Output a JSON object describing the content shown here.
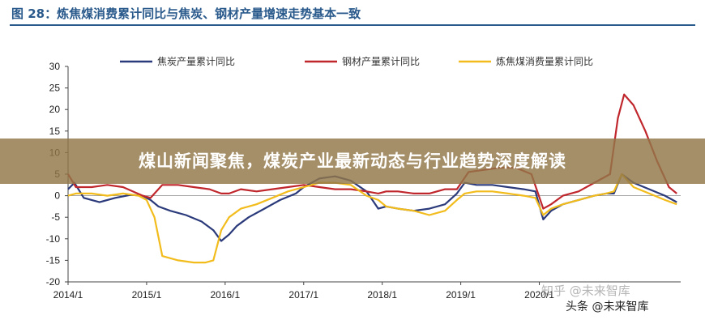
{
  "figure": {
    "title": "图 28：炼焦煤消费累计同比与焦炭、钢材产量增速走势基本一致"
  },
  "banner": {
    "text": "煤山新闻聚焦，煤炭产业最新动态与行业趋势深度解读",
    "color": "#917648"
  },
  "watermark": {
    "text": "知乎 @未来智库"
  },
  "source": {
    "text": "头条 @未来智库"
  },
  "chart_data": {
    "type": "line",
    "x_ticks": [
      "2014/1",
      "2015/1",
      "2016/1",
      "2017/1",
      "2018/1",
      "2019/1",
      "2020/1"
    ],
    "x_range": [
      2014.0,
      2021.8
    ],
    "ylim": [
      -20,
      30
    ],
    "y_ticks": [
      30,
      25,
      20,
      15,
      10,
      5,
      0,
      -5,
      -10,
      -15,
      -20
    ],
    "grid": false,
    "legend_position": "top",
    "series": [
      {
        "name": "焦炭产量累计同比",
        "color": "#2b3a7a",
        "x": [
          2014.0,
          2014.08,
          2014.2,
          2014.4,
          2014.6,
          2014.8,
          2014.95,
          2015.05,
          2015.15,
          2015.3,
          2015.5,
          2015.7,
          2015.85,
          2015.95,
          2016.05,
          2016.15,
          2016.3,
          2016.5,
          2016.7,
          2016.9,
          2017.0,
          2017.2,
          2017.4,
          2017.6,
          2017.8,
          2017.95,
          2018.05,
          2018.2,
          2018.4,
          2018.6,
          2018.8,
          2018.95,
          2019.05,
          2019.2,
          2019.4,
          2019.6,
          2019.8,
          2019.95,
          2020.05,
          2020.15,
          2020.3,
          2020.5,
          2020.7,
          2020.85,
          2020.95,
          2021.05,
          2021.2,
          2021.4,
          2021.6,
          2021.75
        ],
        "values": [
          1.5,
          3.0,
          -0.5,
          -1.5,
          -0.5,
          0.2,
          0.0,
          -1.0,
          -2.5,
          -3.5,
          -4.5,
          -6.0,
          -8.0,
          -10.5,
          -9.0,
          -7.0,
          -5.0,
          -3.0,
          -1.0,
          0.5,
          2.0,
          4.0,
          4.5,
          3.5,
          1.0,
          -3.0,
          -2.5,
          -3.0,
          -3.5,
          -3.0,
          -2.0,
          0.5,
          3.0,
          2.5,
          2.5,
          2.0,
          1.5,
          1.0,
          -5.5,
          -3.5,
          -2.0,
          -1.0,
          0.0,
          0.5,
          0.5,
          5.0,
          3.0,
          1.5,
          0.0,
          -1.5
        ]
      },
      {
        "name": "钢材产量累计同比",
        "color": "#c0272d",
        "x": [
          2014.0,
          2014.1,
          2014.3,
          2014.5,
          2014.7,
          2014.95,
          2015.05,
          2015.2,
          2015.4,
          2015.6,
          2015.8,
          2015.95,
          2016.05,
          2016.2,
          2016.4,
          2016.6,
          2016.8,
          2017.0,
          2017.2,
          2017.4,
          2017.6,
          2017.8,
          2017.95,
          2018.05,
          2018.2,
          2018.4,
          2018.6,
          2018.8,
          2018.95,
          2019.1,
          2019.3,
          2019.5,
          2019.7,
          2019.9,
          2020.05,
          2020.15,
          2020.3,
          2020.5,
          2020.7,
          2020.9,
          2021.0,
          2021.08,
          2021.2,
          2021.35,
          2021.5,
          2021.65,
          2021.75
        ],
        "values": [
          5.0,
          2.0,
          2.0,
          2.5,
          2.0,
          0.0,
          -0.5,
          2.5,
          2.5,
          2.0,
          1.5,
          0.5,
          0.5,
          1.5,
          1.0,
          1.5,
          2.0,
          2.5,
          2.0,
          1.5,
          1.5,
          1.0,
          0.5,
          1.0,
          1.0,
          0.5,
          0.5,
          1.5,
          1.5,
          5.5,
          6.0,
          6.5,
          6.5,
          5.0,
          -3.0,
          -2.0,
          0.0,
          1.0,
          3.0,
          5.0,
          18.0,
          23.5,
          21.0,
          15.0,
          8.0,
          2.0,
          0.5
        ]
      },
      {
        "name": "炼焦煤消费量累计同比",
        "color": "#f2bc1c",
        "x": [
          2014.0,
          2014.1,
          2014.3,
          2014.5,
          2014.7,
          2014.9,
          2015.0,
          2015.1,
          2015.2,
          2015.4,
          2015.6,
          2015.75,
          2015.85,
          2015.95,
          2016.05,
          2016.2,
          2016.4,
          2016.6,
          2016.8,
          2017.0,
          2017.2,
          2017.4,
          2017.6,
          2017.8,
          2017.95,
          2018.05,
          2018.2,
          2018.4,
          2018.6,
          2018.8,
          2018.95,
          2019.05,
          2019.2,
          2019.4,
          2019.6,
          2019.8,
          2019.95,
          2020.05,
          2020.15,
          2020.3,
          2020.5,
          2020.7,
          2020.85,
          2020.95,
          2021.05,
          2021.2,
          2021.4,
          2021.6,
          2021.75
        ],
        "values": [
          0.0,
          0.5,
          0.5,
          0.0,
          0.5,
          0.0,
          -1.0,
          -5.0,
          -14.0,
          -15.0,
          -15.5,
          -15.5,
          -15.0,
          -8.0,
          -5.0,
          -3.0,
          -2.0,
          -0.5,
          1.0,
          2.0,
          3.0,
          3.0,
          2.5,
          0.0,
          -1.0,
          -2.5,
          -3.0,
          -3.5,
          -4.5,
          -3.5,
          -1.0,
          0.5,
          1.0,
          1.0,
          0.5,
          0.0,
          -0.5,
          -4.5,
          -3.0,
          -2.0,
          -1.0,
          0.0,
          0.5,
          1.0,
          5.0,
          2.0,
          0.5,
          -1.0,
          -2.0
        ]
      }
    ]
  }
}
